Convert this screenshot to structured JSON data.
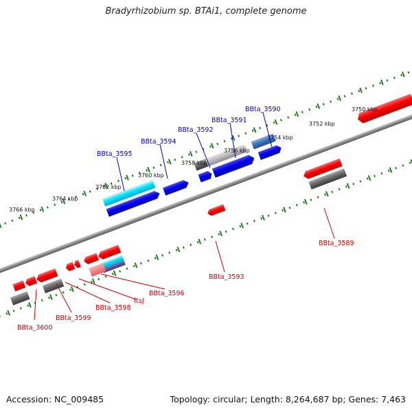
{
  "title": "Bradyrhizobium sp. BTAi1, complete genome",
  "footer": {
    "accession": "Accession: NC_009485",
    "summary": "Topology: circular; Length: 8,264,687 bp; Genes: 7,463"
  },
  "colors": {
    "forward_label": "#0000bb",
    "reverse_label": "#cc0000",
    "ruler": "#1f7a1f",
    "backbone": "#8a8a8a"
  },
  "ruler_labels": [
    "3766 kbp",
    "3764 kbp",
    "3762 kbp",
    "3760 kbp",
    "3758 kbp",
    "3756 kbp",
    "3754 kbp",
    "3752 kbp",
    "3750 kbp"
  ],
  "forward_genes": [
    "BBta_3595",
    "BBta_3594",
    "BBta_3592",
    "BBta_3591",
    "BBta_3590"
  ],
  "reverse_genes": [
    "BBta_3589",
    "BBta_3593",
    "BBta_3596",
    "ftsJ",
    "BBta_3598",
    "BBta_3599",
    "BBta_3600"
  ]
}
